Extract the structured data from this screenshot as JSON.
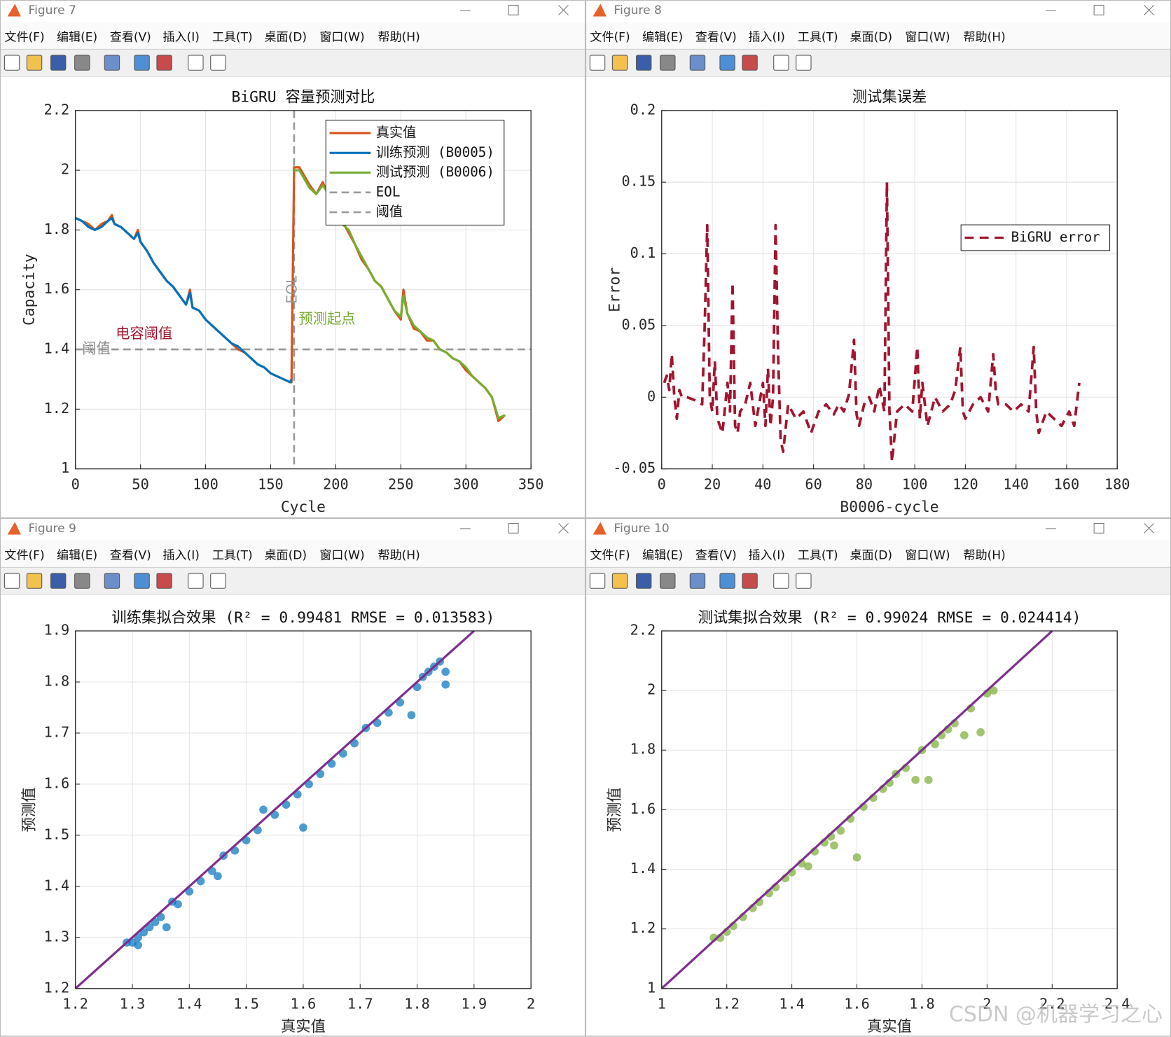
{
  "windows": [
    {
      "title": "Figure 7"
    },
    {
      "title": "Figure 8"
    },
    {
      "title": "Figure 9"
    },
    {
      "title": "Figure 10"
    }
  ],
  "menu": [
    "文件(F)",
    "编辑(E)",
    "查看(V)",
    "插入(I)",
    "工具(T)",
    "桌面(D)",
    "窗口(W)",
    "帮助(H)"
  ],
  "watermark": "CSDN @机器学习之心",
  "chart_data": [
    {
      "type": "line",
      "title": "BiGRU 容量预测对比",
      "xlabel": "Cycle",
      "ylabel": "Capacity",
      "xlim": [
        0,
        350
      ],
      "xticks": [
        0,
        50,
        100,
        150,
        200,
        250,
        300,
        350
      ],
      "ylim": [
        1,
        2.2
      ],
      "yticks": [
        1,
        1.2,
        1.4,
        1.6,
        1.8,
        2,
        2.2
      ],
      "grid": true,
      "legend": "upper right",
      "series": [
        {
          "name": "真实值",
          "color": "#d95319",
          "x": [
            0,
            5,
            10,
            15,
            20,
            25,
            28,
            30,
            35,
            40,
            45,
            48,
            50,
            55,
            60,
            65,
            70,
            75,
            80,
            85,
            88,
            90,
            95,
            100,
            105,
            110,
            115,
            120,
            125,
            130,
            135,
            140,
            145,
            150,
            155,
            160,
            165,
            166,
            168,
            172,
            176,
            180,
            185,
            190,
            193,
            195,
            200,
            205,
            210,
            215,
            220,
            225,
            230,
            235,
            240,
            245,
            250,
            252,
            255,
            260,
            265,
            270,
            275,
            280,
            285,
            290,
            295,
            300,
            305,
            310,
            315,
            320,
            325,
            330
          ],
          "values": [
            1.84,
            1.83,
            1.82,
            1.8,
            1.82,
            1.83,
            1.85,
            1.82,
            1.81,
            1.79,
            1.77,
            1.8,
            1.76,
            1.73,
            1.69,
            1.66,
            1.63,
            1.61,
            1.58,
            1.55,
            1.6,
            1.54,
            1.53,
            1.5,
            1.48,
            1.46,
            1.44,
            1.42,
            1.4,
            1.39,
            1.37,
            1.35,
            1.34,
            1.32,
            1.31,
            1.3,
            1.29,
            1.29,
            2.01,
            2.01,
            1.98,
            1.95,
            1.92,
            1.96,
            1.93,
            1.88,
            1.86,
            1.83,
            1.79,
            1.75,
            1.7,
            1.67,
            1.63,
            1.61,
            1.57,
            1.53,
            1.5,
            1.6,
            1.52,
            1.47,
            1.46,
            1.43,
            1.43,
            1.4,
            1.39,
            1.37,
            1.36,
            1.33,
            1.31,
            1.29,
            1.27,
            1.24,
            1.16,
            1.18
          ]
        },
        {
          "name": "训练预测 (B0005)",
          "color": "#0072bd",
          "x": [
            0,
            5,
            10,
            15,
            20,
            25,
            28,
            30,
            35,
            40,
            45,
            48,
            50,
            55,
            60,
            65,
            70,
            75,
            80,
            85,
            88,
            90,
            95,
            100,
            105,
            110,
            115,
            120,
            125,
            130,
            135,
            140,
            145,
            150,
            155,
            160,
            165,
            166
          ],
          "values": [
            1.84,
            1.83,
            1.81,
            1.8,
            1.81,
            1.83,
            1.84,
            1.82,
            1.81,
            1.79,
            1.77,
            1.79,
            1.76,
            1.73,
            1.69,
            1.66,
            1.63,
            1.61,
            1.58,
            1.55,
            1.59,
            1.54,
            1.53,
            1.5,
            1.48,
            1.46,
            1.44,
            1.42,
            1.41,
            1.39,
            1.37,
            1.35,
            1.34,
            1.32,
            1.31,
            1.3,
            1.29,
            1.3
          ]
        },
        {
          "name": "测试预测 (B0006)",
          "color": "#77ac30",
          "x": [
            168,
            172,
            176,
            180,
            185,
            190,
            193,
            195,
            200,
            205,
            210,
            215,
            220,
            225,
            230,
            235,
            240,
            245,
            250,
            252,
            255,
            260,
            265,
            270,
            275,
            280,
            285,
            290,
            295,
            300,
            305,
            310,
            315,
            320,
            325,
            330
          ],
          "values": [
            2.0,
            2.0,
            1.97,
            1.94,
            1.92,
            1.95,
            1.93,
            1.87,
            1.85,
            1.82,
            1.8,
            1.75,
            1.71,
            1.67,
            1.63,
            1.61,
            1.57,
            1.53,
            1.51,
            1.58,
            1.52,
            1.48,
            1.46,
            1.44,
            1.43,
            1.4,
            1.39,
            1.37,
            1.36,
            1.34,
            1.31,
            1.29,
            1.27,
            1.24,
            1.17,
            1.18
          ]
        }
      ],
      "reference_lines": [
        {
          "name": "EOL",
          "axis": "x",
          "value": 168,
          "color": "#999999"
        },
        {
          "name": "阈值",
          "axis": "y",
          "value": 1.4,
          "color": "#999999"
        }
      ],
      "annotations": [
        {
          "text": "电容阈值",
          "color": "#a2142f"
        },
        {
          "text": "阈值",
          "color": "#888888"
        },
        {
          "text": "EOL",
          "color": "#999999"
        },
        {
          "text": "预测起点",
          "color": "#77ac30"
        }
      ]
    },
    {
      "type": "line",
      "title": "测试集误差",
      "xlabel": "B0006-cycle",
      "ylabel": "Error",
      "xlim": [
        0,
        180
      ],
      "xticks": [
        0,
        20,
        40,
        60,
        80,
        100,
        120,
        140,
        160,
        180
      ],
      "ylim": [
        -0.05,
        0.2
      ],
      "yticks": [
        -0.05,
        0,
        0.05,
        0.1,
        0.15,
        0.2
      ],
      "grid": true,
      "legend": "right",
      "series": [
        {
          "name": "BiGRU error",
          "color": "#a2142f",
          "dashed": true,
          "x": [
            1,
            2,
            3,
            4,
            5,
            6,
            7,
            8,
            10,
            13,
            16,
            17,
            18,
            19,
            20,
            21,
            22,
            24,
            26,
            27,
            28,
            29,
            30,
            31,
            33,
            35,
            37,
            40,
            41,
            42,
            43,
            44,
            45,
            46,
            47,
            48,
            50,
            53,
            56,
            59,
            62,
            65,
            68,
            70,
            72,
            74,
            76,
            77,
            78,
            80,
            82,
            84,
            86,
            88,
            89,
            90,
            91,
            93,
            96,
            99,
            101,
            102,
            103,
            105,
            108,
            111,
            114,
            116,
            118,
            119,
            120,
            123,
            126,
            129,
            131,
            132,
            133,
            136,
            139,
            142,
            145,
            147,
            148,
            149,
            150,
            152,
            155,
            158,
            161,
            163,
            164,
            165
          ],
          "values": [
            0.01,
            0.015,
            0.005,
            0.03,
            0,
            -0.015,
            0.005,
            0,
            0,
            -0.002,
            -0.005,
            0.05,
            0.12,
            0,
            -0.01,
            0.025,
            -0.015,
            -0.025,
            0.01,
            -0.01,
            0.08,
            -0.02,
            -0.025,
            -0.01,
            -0.005,
            0.01,
            -0.02,
            0.01,
            -0.02,
            0.02,
            -0.02,
            0,
            0.12,
            0.03,
            -0.03,
            -0.038,
            -0.005,
            -0.015,
            -0.01,
            -0.025,
            -0.01,
            -0.005,
            -0.012,
            -0.005,
            -0.01,
            0.002,
            0.04,
            -0.012,
            -0.02,
            -0.005,
            0,
            -0.01,
            0.008,
            -0.01,
            0.15,
            -0.01,
            -0.045,
            -0.01,
            -0.005,
            -0.01,
            0.035,
            -0.015,
            0.01,
            -0.02,
            0,
            -0.01,
            -0.005,
            0.005,
            0.035,
            -0.01,
            -0.015,
            -0.005,
            0,
            -0.01,
            0.03,
            0.005,
            -0.005,
            -0.005,
            -0.01,
            -0.005,
            -0.01,
            0.035,
            -0.01,
            -0.025,
            -0.02,
            -0.01,
            -0.015,
            -0.02,
            -0.01,
            -0.02,
            -0.005,
            0.01
          ]
        }
      ]
    },
    {
      "type": "scatter",
      "title": "训练集拟合效果 (R² = 0.99481 RMSE = 0.013583)",
      "xlabel": "真实值",
      "ylabel": "预测值",
      "xlim": [
        1.2,
        2
      ],
      "xticks": [
        1.2,
        1.3,
        1.4,
        1.5,
        1.6,
        1.7,
        1.8,
        1.9,
        2
      ],
      "ylim": [
        1.2,
        1.9
      ],
      "yticks": [
        1.2,
        1.3,
        1.4,
        1.5,
        1.6,
        1.7,
        1.8,
        1.9
      ],
      "grid": true,
      "series": [
        {
          "color": "#0072bd",
          "x": [
            1.29,
            1.3,
            1.31,
            1.31,
            1.32,
            1.33,
            1.34,
            1.35,
            1.36,
            1.37,
            1.38,
            1.4,
            1.42,
            1.44,
            1.45,
            1.46,
            1.48,
            1.5,
            1.52,
            1.53,
            1.55,
            1.57,
            1.59,
            1.6,
            1.61,
            1.63,
            1.65,
            1.67,
            1.69,
            1.71,
            1.73,
            1.75,
            1.77,
            1.79,
            1.8,
            1.81,
            1.82,
            1.83,
            1.84,
            1.85,
            1.85
          ],
          "values": [
            1.29,
            1.29,
            1.285,
            1.3,
            1.31,
            1.32,
            1.33,
            1.34,
            1.32,
            1.37,
            1.365,
            1.39,
            1.41,
            1.43,
            1.42,
            1.46,
            1.47,
            1.49,
            1.51,
            1.55,
            1.54,
            1.56,
            1.58,
            1.515,
            1.6,
            1.62,
            1.64,
            1.66,
            1.68,
            1.71,
            1.72,
            1.74,
            1.76,
            1.735,
            1.79,
            1.81,
            1.82,
            1.83,
            1.84,
            1.82,
            1.795
          ]
        }
      ],
      "diagonal": {
        "color": "#7e2f8e",
        "x": [
          1.2,
          1.9
        ],
        "values": [
          1.2,
          1.9
        ]
      }
    },
    {
      "type": "scatter",
      "title": "测试集拟合效果 (R² = 0.99024 RMSE = 0.024414)",
      "xlabel": "真实值",
      "ylabel": "预测值",
      "xlim": [
        1,
        2.4
      ],
      "xticks": [
        1,
        1.2,
        1.4,
        1.6,
        1.8,
        2,
        2.2,
        2.4
      ],
      "ylim": [
        1,
        2.2
      ],
      "yticks": [
        1,
        1.2,
        1.4,
        1.6,
        1.8,
        2,
        2.2
      ],
      "grid": true,
      "series": [
        {
          "color": "#77ac30",
          "x": [
            1.16,
            1.18,
            1.2,
            1.22,
            1.25,
            1.28,
            1.3,
            1.33,
            1.35,
            1.38,
            1.4,
            1.43,
            1.45,
            1.47,
            1.5,
            1.52,
            1.53,
            1.55,
            1.58,
            1.6,
            1.62,
            1.65,
            1.68,
            1.7,
            1.72,
            1.75,
            1.78,
            1.8,
            1.82,
            1.84,
            1.86,
            1.88,
            1.9,
            1.93,
            1.95,
            1.98,
            2.0,
            2.02
          ],
          "values": [
            1.17,
            1.17,
            1.19,
            1.21,
            1.24,
            1.27,
            1.29,
            1.32,
            1.34,
            1.37,
            1.39,
            1.42,
            1.41,
            1.46,
            1.49,
            1.51,
            1.48,
            1.53,
            1.57,
            1.44,
            1.61,
            1.64,
            1.67,
            1.69,
            1.72,
            1.74,
            1.7,
            1.8,
            1.7,
            1.82,
            1.85,
            1.87,
            1.89,
            1.85,
            1.94,
            1.86,
            1.99,
            2.0
          ]
        }
      ],
      "diagonal": {
        "color": "#7e2f8e",
        "x": [
          1,
          2.2
        ],
        "values": [
          1,
          2.2
        ]
      }
    }
  ]
}
